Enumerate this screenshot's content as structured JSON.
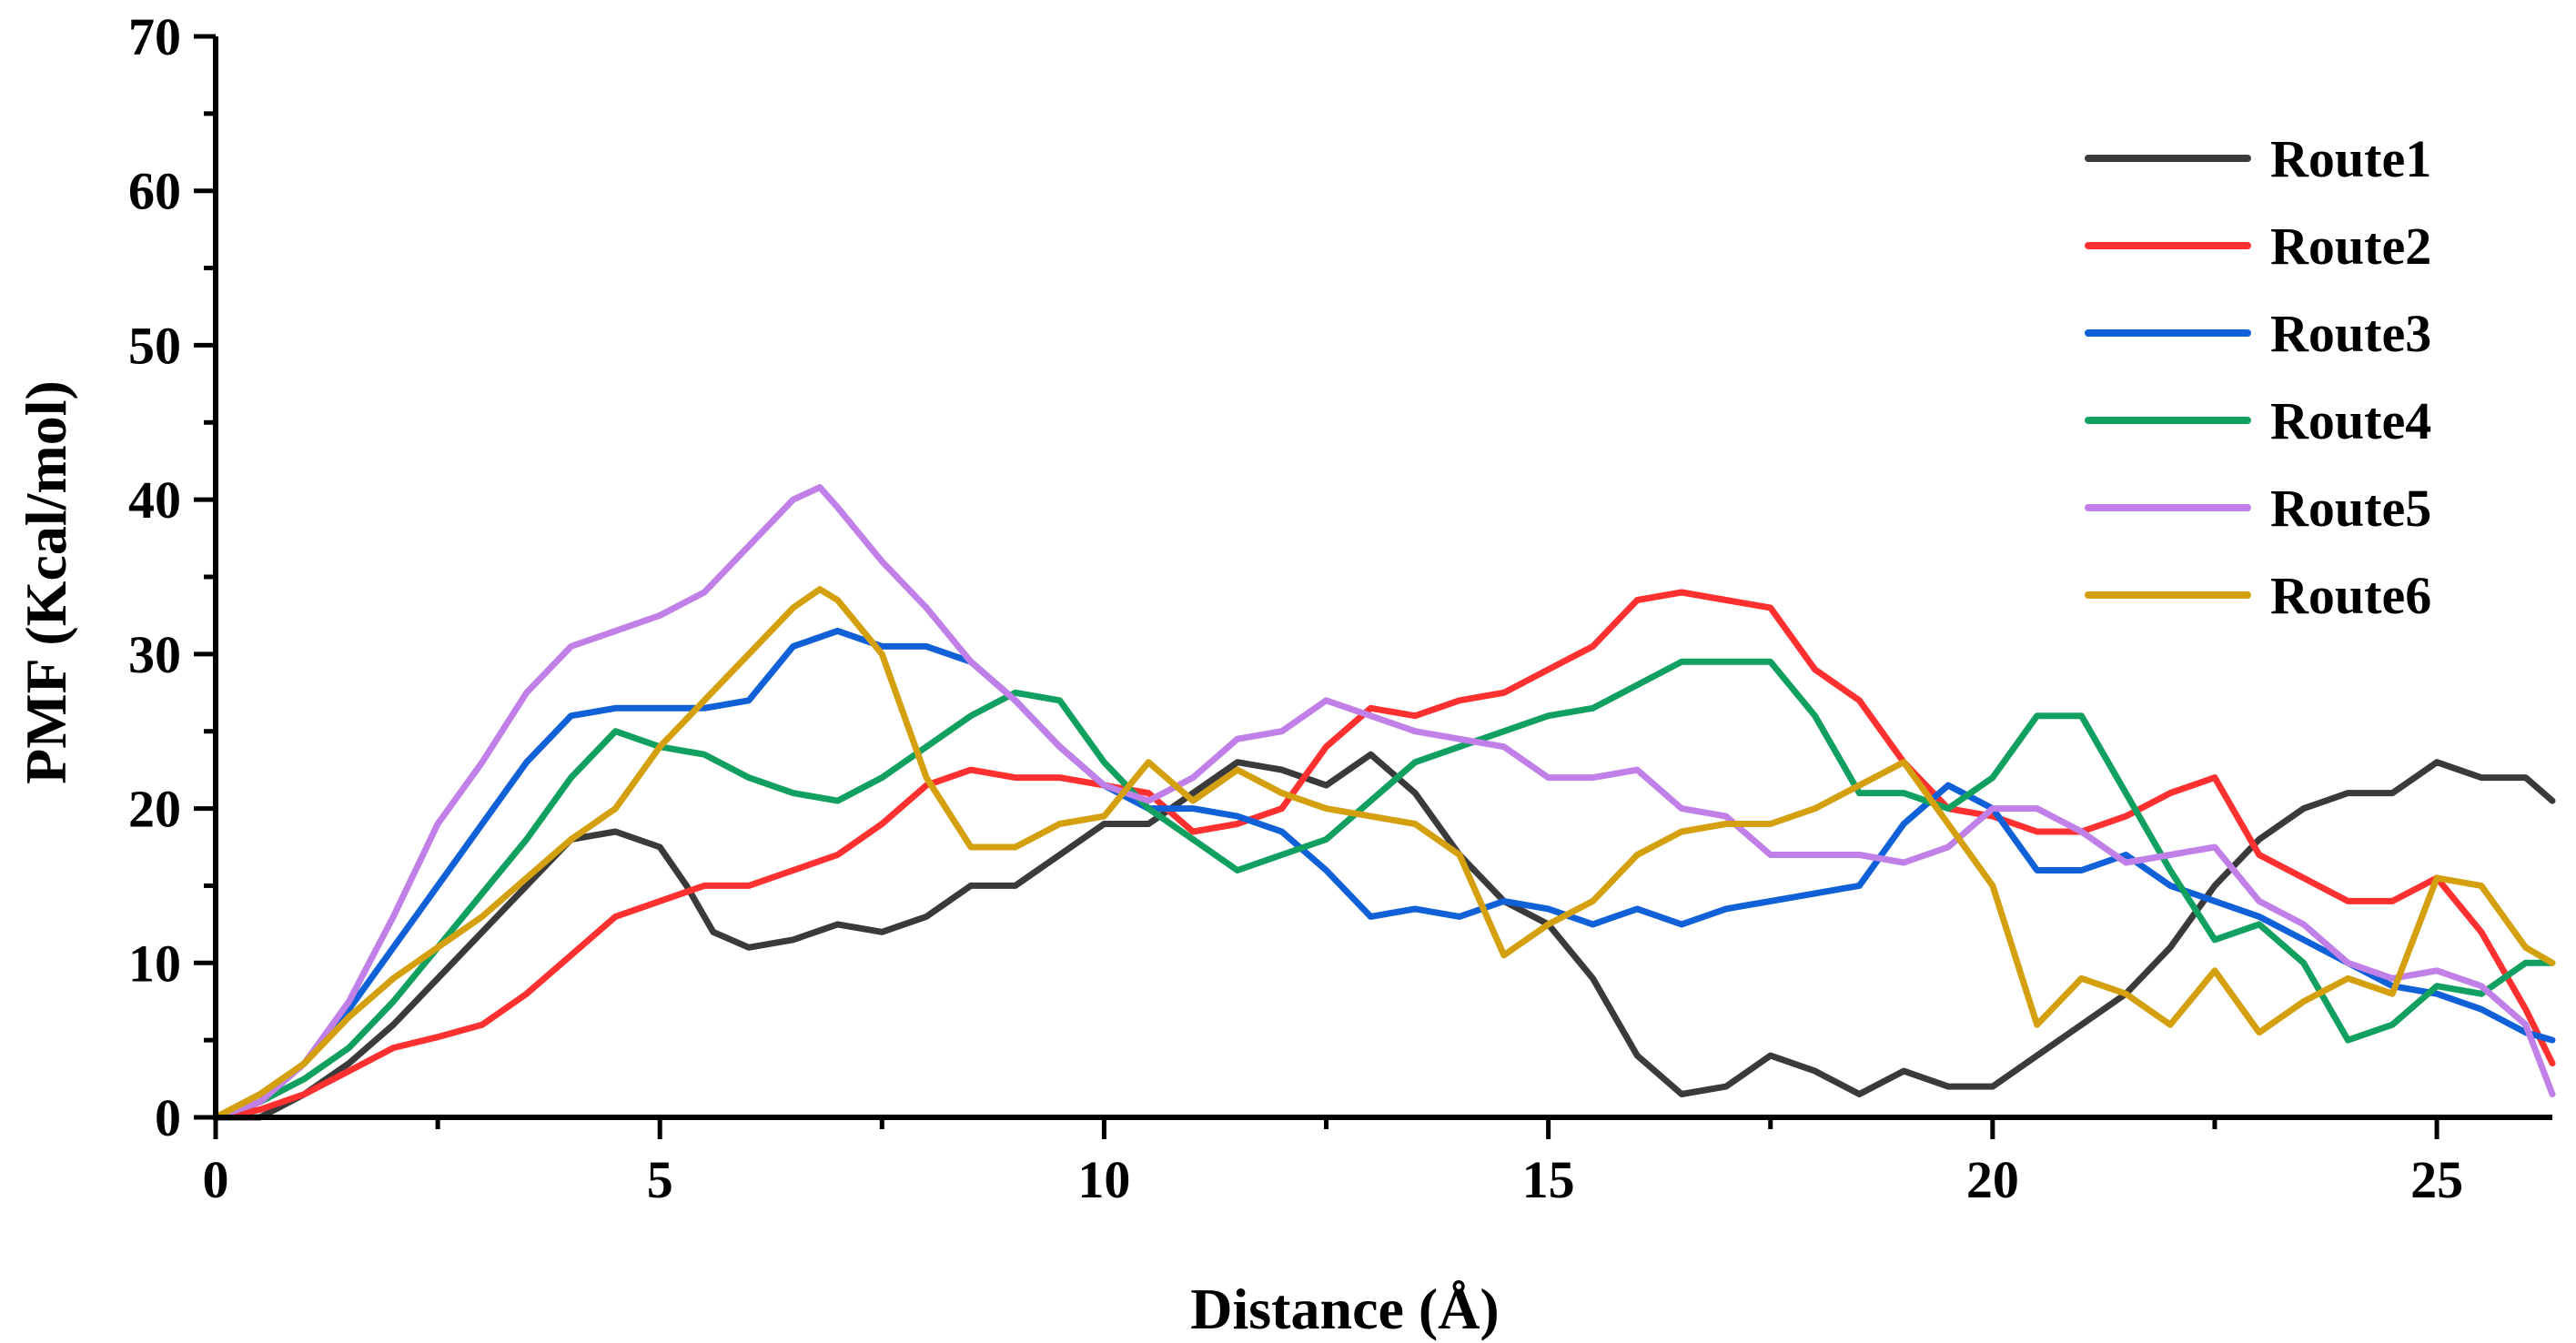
{
  "chart_data": {
    "type": "line",
    "title": "",
    "xlabel": "Distance (Å)",
    "ylabel": "PMF (Kcal/mol)",
    "xlim": [
      0,
      26.3
    ],
    "ylim": [
      0,
      70
    ],
    "xticks": [
      0,
      5,
      10,
      15,
      20,
      25
    ],
    "yticks": [
      0,
      10,
      20,
      30,
      40,
      50,
      60,
      70
    ],
    "grid": false,
    "legend_position": "top-right",
    "series": [
      {
        "name": "Route1",
        "color": "#3a3a3a",
        "x": [
          0,
          0.5,
          1,
          1.5,
          2,
          2.5,
          3,
          3.5,
          4,
          4.5,
          5,
          5.3,
          5.6,
          6,
          6.5,
          7,
          7.5,
          8,
          8.5,
          9,
          9.5,
          10,
          10.5,
          11,
          11.5,
          12,
          12.5,
          13,
          13.5,
          14,
          14.5,
          15,
          15.5,
          16,
          16.5,
          17,
          17.5,
          18,
          18.5,
          19,
          19.5,
          20,
          20.5,
          21,
          21.5,
          22,
          22.5,
          23,
          23.5,
          24,
          24.5,
          25,
          25.5,
          26,
          26.3
        ],
        "y": [
          0,
          0,
          1.5,
          3.5,
          6,
          9,
          12,
          15,
          18,
          18.5,
          17.5,
          15,
          12,
          11,
          11.5,
          12.5,
          12,
          13,
          15,
          15,
          17,
          19,
          19,
          21,
          23,
          22.5,
          21.5,
          23.5,
          21,
          17,
          14,
          12.5,
          9,
          4,
          1.5,
          2,
          4,
          3,
          1.5,
          3,
          2,
          2,
          4,
          6,
          8,
          11,
          15,
          18,
          20,
          21,
          21,
          23,
          22,
          22,
          20.5
        ]
      },
      {
        "name": "Route2",
        "color": "#ff3030",
        "x": [
          0,
          0.5,
          1,
          1.5,
          2,
          2.5,
          3,
          3.5,
          4,
          4.5,
          5,
          5.5,
          6,
          6.5,
          7,
          7.5,
          8,
          8.5,
          9,
          9.5,
          10,
          10.5,
          11,
          11.5,
          12,
          12.5,
          13,
          13.5,
          14,
          14.5,
          15,
          15.5,
          16,
          16.5,
          17,
          17.5,
          18,
          18.5,
          19,
          19.5,
          20,
          20.5,
          21,
          21.5,
          22,
          22.5,
          23,
          23.5,
          24,
          24.5,
          25,
          25.5,
          26,
          26.3
        ],
        "y": [
          0,
          0.5,
          1.5,
          3,
          4.5,
          5.2,
          6,
          8,
          10.5,
          13,
          14,
          15,
          15,
          16,
          17,
          19,
          21.5,
          22.5,
          22,
          22,
          21.5,
          21,
          18.5,
          19,
          20,
          24,
          26.5,
          26,
          27,
          27.5,
          29,
          30.5,
          33.5,
          34,
          33.5,
          33,
          29,
          27,
          23,
          20,
          19.5,
          18.5,
          18.5,
          19.5,
          21,
          22,
          17,
          15.5,
          14,
          14,
          15.5,
          12,
          7,
          3.5
        ]
      },
      {
        "name": "Route3",
        "color": "#1060d8",
        "x": [
          0,
          0.5,
          1,
          1.5,
          2,
          2.5,
          3,
          3.5,
          4,
          4.5,
          5,
          5.5,
          6,
          6.5,
          7,
          7.5,
          8,
          8.5,
          9,
          9.5,
          10,
          10.5,
          11,
          11.5,
          12,
          12.5,
          13,
          13.5,
          14,
          14.5,
          15,
          15.5,
          16,
          16.5,
          17,
          17.5,
          18,
          18.5,
          19,
          19.5,
          20,
          20.5,
          21,
          21.5,
          22,
          22.5,
          23,
          23.5,
          24,
          24.5,
          25,
          25.5,
          26,
          26.3
        ],
        "y": [
          0,
          1,
          3.5,
          7,
          11,
          15,
          19,
          23,
          26,
          26.5,
          26.5,
          26.5,
          27,
          30.5,
          31.5,
          30.5,
          30.5,
          29.5,
          27,
          24,
          21.5,
          20,
          20,
          19.5,
          18.5,
          16,
          13,
          13.5,
          13,
          14,
          13.5,
          12.5,
          13.5,
          12.5,
          13.5,
          14,
          14.5,
          15,
          19,
          21.5,
          20,
          16,
          16,
          17,
          15,
          14,
          13,
          11.5,
          10,
          8.5,
          8,
          7,
          5.5,
          5
        ]
      },
      {
        "name": "Route4",
        "color": "#12a060",
        "x": [
          0,
          0.5,
          1,
          1.5,
          2,
          2.5,
          3,
          3.5,
          4,
          4.5,
          5,
          5.5,
          6,
          6.5,
          7,
          7.5,
          8,
          8.5,
          9,
          9.5,
          10,
          10.5,
          11,
          11.5,
          12,
          12.5,
          13,
          13.5,
          14,
          14.5,
          15,
          15.5,
          16,
          16.5,
          17,
          17.5,
          18,
          18.5,
          19,
          19.5,
          20,
          20.5,
          21,
          21.5,
          22,
          22.5,
          23,
          23.5,
          24,
          24.5,
          25,
          25.5,
          26,
          26.3
        ],
        "y": [
          0,
          1,
          2.5,
          4.5,
          7.5,
          11,
          14.5,
          18,
          22,
          25,
          24,
          23.5,
          22,
          21,
          20.5,
          22,
          24,
          26,
          27.5,
          27,
          23,
          20,
          18,
          16,
          17,
          18,
          20.5,
          23,
          24,
          25,
          26,
          26.5,
          28,
          29.5,
          29.5,
          29.5,
          26,
          21,
          21,
          20,
          22,
          26,
          26,
          21,
          16,
          11.5,
          12.5,
          10,
          5,
          6,
          8.5,
          8,
          10,
          10
        ]
      },
      {
        "name": "Route5",
        "color": "#c080e8",
        "x": [
          0,
          0.5,
          1,
          1.5,
          2,
          2.5,
          3,
          3.5,
          4,
          4.5,
          5,
          5.5,
          6,
          6.5,
          6.8,
          7,
          7.5,
          8,
          8.5,
          9,
          9.5,
          10,
          10.5,
          11,
          11.5,
          12,
          12.5,
          13,
          13.5,
          14,
          14.5,
          15,
          15.5,
          16,
          16.5,
          17,
          17.5,
          18,
          18.5,
          19,
          19.5,
          20,
          20.5,
          21,
          21.5,
          22,
          22.5,
          23,
          23.5,
          24,
          24.5,
          25,
          25.5,
          26,
          26.3
        ],
        "y": [
          0,
          1,
          3.5,
          7.5,
          13,
          19,
          23,
          27.5,
          30.5,
          31.5,
          32.5,
          34,
          37,
          40,
          40.8,
          39.5,
          36,
          33,
          29.5,
          27,
          24,
          21.5,
          20.5,
          22,
          24.5,
          25,
          27,
          26,
          25,
          24.5,
          24,
          22,
          22,
          22.5,
          20,
          19.5,
          17,
          17,
          17,
          16.5,
          17.5,
          20,
          20,
          18.5,
          16.5,
          17,
          17.5,
          14,
          12.5,
          10,
          9,
          9.5,
          8.5,
          6,
          1.5
        ]
      },
      {
        "name": "Route6",
        "color": "#d4a010",
        "x": [
          0,
          0.5,
          1,
          1.5,
          2,
          2.5,
          3,
          3.5,
          4,
          4.5,
          5,
          5.5,
          6,
          6.5,
          6.8,
          7,
          7.5,
          8,
          8.5,
          9,
          9.5,
          10,
          10.5,
          11,
          11.5,
          12,
          12.5,
          13,
          13.5,
          14,
          14.5,
          15,
          15.5,
          16,
          16.5,
          17,
          17.5,
          18,
          18.5,
          19,
          19.5,
          20,
          20.5,
          21,
          21.5,
          22,
          22.5,
          23,
          23.5,
          24,
          24.5,
          25,
          25.5,
          26,
          26.3
        ],
        "y": [
          0,
          1.5,
          3.5,
          6.5,
          9,
          11,
          13,
          15.5,
          18,
          20,
          24,
          27,
          30,
          33,
          34.2,
          33.5,
          30,
          22,
          17.5,
          17.5,
          19,
          19.5,
          23,
          20.5,
          22.5,
          21,
          20,
          19.5,
          19,
          17,
          10.5,
          12.5,
          14,
          17,
          18.5,
          19,
          19,
          20,
          21.5,
          23,
          19,
          15,
          6,
          9,
          8,
          6,
          9.5,
          5.5,
          7.5,
          9,
          8,
          15.5,
          15,
          11,
          10
        ]
      }
    ]
  }
}
